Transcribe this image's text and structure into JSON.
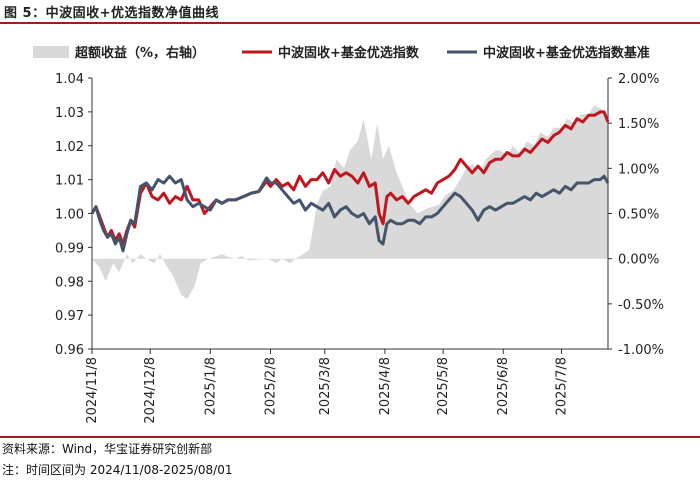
{
  "figure": {
    "title": "图 5：中波固收+优选指数净值曲线",
    "source": "资料来源：Wind，华宝证券研究创新部",
    "note": "注：时间区间为 2024/11/08-2025/08/01"
  },
  "chart_data": {
    "type": "line",
    "title": "",
    "xlabel": "",
    "ylabel": "",
    "x_ticks": [
      "2024/11/8",
      "2024/12/8",
      "2025/1/8",
      "2025/2/8",
      "2025/3/8",
      "2025/4/8",
      "2025/5/8",
      "2025/6/8",
      "2025/7/8"
    ],
    "x_range": [
      "2024-11-08",
      "2025-08-01"
    ],
    "y_left": {
      "min": 0.96,
      "max": 1.04,
      "ticks": [
        "0.96",
        "0.97",
        "0.98",
        "0.99",
        "1.00",
        "1.01",
        "1.02",
        "1.03",
        "1.04"
      ]
    },
    "y_right": {
      "min": -1.0,
      "max": 2.0,
      "ticks": [
        "-1.00%",
        "-0.50%",
        "0.00%",
        "0.50%",
        "1.00%",
        "1.50%",
        "2.00%"
      ]
    },
    "grid": false,
    "legend_position": "top",
    "series": [
      {
        "name": "超额收益（%，右轴）",
        "kind": "area",
        "axis": "right",
        "color": "#d9d9d9",
        "x": [
          "2024-11-08",
          "2024-11-12",
          "2024-11-15",
          "2024-11-19",
          "2024-11-22",
          "2024-11-26",
          "2024-11-29",
          "2024-12-03",
          "2024-12-06",
          "2024-12-10",
          "2024-12-13",
          "2024-12-17",
          "2024-12-20",
          "2024-12-24",
          "2024-12-27",
          "2024-12-31",
          "2025-01-03",
          "2025-01-07",
          "2025-01-10",
          "2025-01-14",
          "2025-01-17",
          "2025-01-21",
          "2025-01-24",
          "2025-01-28",
          "2025-02-07",
          "2025-02-11",
          "2025-02-14",
          "2025-02-18",
          "2025-02-21",
          "2025-02-25",
          "2025-02-28",
          "2025-03-04",
          "2025-03-07",
          "2025-03-11",
          "2025-03-14",
          "2025-03-18",
          "2025-03-21",
          "2025-03-25",
          "2025-03-28",
          "2025-04-01",
          "2025-04-04",
          "2025-04-07",
          "2025-04-10",
          "2025-04-14",
          "2025-04-17",
          "2025-04-21",
          "2025-04-25",
          "2025-04-29",
          "2025-05-06",
          "2025-05-09",
          "2025-05-13",
          "2025-05-16",
          "2025-05-20",
          "2025-05-23",
          "2025-05-27",
          "2025-05-30",
          "2025-06-04",
          "2025-06-06",
          "2025-06-10",
          "2025-06-13",
          "2025-06-17",
          "2025-06-20",
          "2025-06-24",
          "2025-06-27",
          "2025-07-01",
          "2025-07-04",
          "2025-07-08",
          "2025-07-11",
          "2025-07-15",
          "2025-07-18",
          "2025-07-22",
          "2025-07-25",
          "2025-07-29",
          "2025-08-01"
        ],
        "values": [
          0.0,
          -0.1,
          -0.25,
          -0.05,
          -0.15,
          0.05,
          -0.05,
          0.05,
          0.0,
          -0.05,
          0.05,
          -0.1,
          -0.2,
          -0.4,
          -0.45,
          -0.3,
          -0.05,
          0.0,
          0.02,
          0.05,
          0.02,
          0.0,
          0.03,
          -0.02,
          0.0,
          -0.05,
          0.0,
          -0.05,
          0.0,
          0.05,
          0.1,
          0.6,
          0.75,
          0.8,
          1.1,
          1.0,
          1.2,
          1.3,
          1.55,
          1.1,
          1.5,
          1.1,
          1.25,
          0.95,
          0.8,
          0.6,
          0.5,
          0.55,
          0.6,
          0.7,
          0.75,
          0.85,
          1.0,
          1.05,
          0.95,
          1.1,
          1.2,
          1.2,
          1.15,
          1.25,
          1.15,
          1.3,
          1.25,
          1.4,
          1.35,
          1.45,
          1.45,
          1.55,
          1.5,
          1.6,
          1.6,
          1.7,
          1.65,
          1.5
        ]
      },
      {
        "name": "中波固收+基金优选指数",
        "kind": "line",
        "axis": "left",
        "color": "#c0161f",
        "x": [
          "2024-11-08",
          "2024-11-10",
          "2024-11-12",
          "2024-11-14",
          "2024-11-16",
          "2024-11-18",
          "2024-11-20",
          "2024-11-22",
          "2024-11-24",
          "2024-11-26",
          "2024-11-28",
          "2024-11-30",
          "2024-12-03",
          "2024-12-06",
          "2024-12-09",
          "2024-12-12",
          "2024-12-15",
          "2024-12-18",
          "2024-12-21",
          "2024-12-24",
          "2024-12-27",
          "2024-12-30",
          "2025-01-02",
          "2025-01-05",
          "2025-01-08",
          "2025-01-11",
          "2025-01-14",
          "2025-01-17",
          "2025-01-21",
          "2025-01-25",
          "2025-01-29",
          "2025-02-02",
          "2025-02-06",
          "2025-02-08",
          "2025-02-11",
          "2025-02-14",
          "2025-02-17",
          "2025-02-20",
          "2025-02-23",
          "2025-02-26",
          "2025-03-01",
          "2025-03-04",
          "2025-03-07",
          "2025-03-10",
          "2025-03-13",
          "2025-03-16",
          "2025-03-19",
          "2025-03-22",
          "2025-03-25",
          "2025-03-28",
          "2025-03-31",
          "2025-04-03",
          "2025-04-05",
          "2025-04-07",
          "2025-04-09",
          "2025-04-11",
          "2025-04-14",
          "2025-04-17",
          "2025-04-20",
          "2025-04-23",
          "2025-04-26",
          "2025-04-29",
          "2025-05-02",
          "2025-05-05",
          "2025-05-08",
          "2025-05-11",
          "2025-05-14",
          "2025-05-17",
          "2025-05-20",
          "2025-05-23",
          "2025-05-26",
          "2025-05-29",
          "2025-06-01",
          "2025-06-04",
          "2025-06-07",
          "2025-06-10",
          "2025-06-13",
          "2025-06-16",
          "2025-06-19",
          "2025-06-22",
          "2025-06-25",
          "2025-06-28",
          "2025-07-01",
          "2025-07-04",
          "2025-07-07",
          "2025-07-10",
          "2025-07-13",
          "2025-07-16",
          "2025-07-19",
          "2025-07-22",
          "2025-07-25",
          "2025-07-28",
          "2025-07-30",
          "2025-08-01"
        ],
        "values": [
          1.0,
          1.002,
          0.999,
          0.996,
          0.993,
          0.995,
          0.992,
          0.994,
          0.991,
          0.995,
          0.998,
          0.996,
          1.006,
          1.009,
          1.005,
          1.004,
          1.006,
          1.003,
          1.005,
          1.004,
          1.008,
          1.004,
          1.004,
          1.0,
          1.002,
          1.004,
          1.003,
          1.004,
          1.004,
          1.005,
          1.006,
          1.0065,
          1.0095,
          1.008,
          1.01,
          1.008,
          1.009,
          1.007,
          1.011,
          1.008,
          1.01,
          1.01,
          1.012,
          1.009,
          1.013,
          1.011,
          1.012,
          1.011,
          1.009,
          1.012,
          1.008,
          1.009,
          1.0,
          0.997,
          1.005,
          1.006,
          1.004,
          1.005,
          1.003,
          1.005,
          1.006,
          1.007,
          1.006,
          1.009,
          1.01,
          1.011,
          1.013,
          1.016,
          1.014,
          1.012,
          1.014,
          1.012,
          1.015,
          1.016,
          1.016,
          1.018,
          1.017,
          1.017,
          1.019,
          1.018,
          1.02,
          1.022,
          1.021,
          1.023,
          1.024,
          1.026,
          1.025,
          1.028,
          1.027,
          1.029,
          1.029,
          1.03,
          1.03,
          1.027
        ]
      },
      {
        "name": "中波固收+基金优选指数基准",
        "kind": "line",
        "axis": "left",
        "color": "#44546a",
        "x": [
          "2024-11-08",
          "2024-11-10",
          "2024-11-12",
          "2024-11-14",
          "2024-11-16",
          "2024-11-18",
          "2024-11-20",
          "2024-11-22",
          "2024-11-24",
          "2024-11-26",
          "2024-11-28",
          "2024-11-30",
          "2024-12-03",
          "2024-12-06",
          "2024-12-09",
          "2024-12-12",
          "2024-12-15",
          "2024-12-18",
          "2024-12-21",
          "2024-12-24",
          "2024-12-27",
          "2024-12-30",
          "2025-01-02",
          "2025-01-05",
          "2025-01-08",
          "2025-01-11",
          "2025-01-14",
          "2025-01-17",
          "2025-01-21",
          "2025-01-25",
          "2025-01-29",
          "2025-02-02",
          "2025-02-06",
          "2025-02-08",
          "2025-02-11",
          "2025-02-14",
          "2025-02-17",
          "2025-02-20",
          "2025-02-23",
          "2025-02-26",
          "2025-03-01",
          "2025-03-04",
          "2025-03-07",
          "2025-03-10",
          "2025-03-13",
          "2025-03-16",
          "2025-03-19",
          "2025-03-22",
          "2025-03-25",
          "2025-03-28",
          "2025-03-31",
          "2025-04-03",
          "2025-04-05",
          "2025-04-07",
          "2025-04-09",
          "2025-04-11",
          "2025-04-14",
          "2025-04-17",
          "2025-04-20",
          "2025-04-23",
          "2025-04-26",
          "2025-04-29",
          "2025-05-02",
          "2025-05-05",
          "2025-05-08",
          "2025-05-11",
          "2025-05-14",
          "2025-05-17",
          "2025-05-20",
          "2025-05-23",
          "2025-05-26",
          "2025-05-29",
          "2025-06-01",
          "2025-06-04",
          "2025-06-07",
          "2025-06-10",
          "2025-06-13",
          "2025-06-16",
          "2025-06-19",
          "2025-06-22",
          "2025-06-25",
          "2025-06-28",
          "2025-07-01",
          "2025-07-04",
          "2025-07-07",
          "2025-07-10",
          "2025-07-13",
          "2025-07-16",
          "2025-07-19",
          "2025-07-22",
          "2025-07-25",
          "2025-07-28",
          "2025-07-30",
          "2025-08-01"
        ],
        "values": [
          1.0,
          1.002,
          0.998,
          0.995,
          0.993,
          0.994,
          0.991,
          0.993,
          0.989,
          0.994,
          0.998,
          0.997,
          1.008,
          1.009,
          1.007,
          1.01,
          1.009,
          1.011,
          1.009,
          1.01,
          1.004,
          1.002,
          1.003,
          1.002,
          1.001,
          1.004,
          1.003,
          1.004,
          1.004,
          1.005,
          1.006,
          1.0065,
          1.0105,
          1.009,
          1.009,
          1.007,
          1.005,
          1.003,
          1.004,
          1.001,
          1.003,
          1.002,
          1.001,
          1.003,
          0.999,
          1.001,
          1.002,
          1.0,
          0.999,
          1.0,
          0.997,
          0.999,
          0.992,
          0.991,
          0.997,
          0.998,
          0.997,
          0.997,
          0.998,
          0.998,
          0.997,
          0.999,
          0.999,
          1.0,
          1.002,
          1.004,
          1.006,
          1.005,
          1.003,
          1.001,
          0.998,
          1.001,
          1.002,
          1.001,
          1.002,
          1.003,
          1.003,
          1.004,
          1.005,
          1.004,
          1.006,
          1.005,
          1.006,
          1.007,
          1.006,
          1.008,
          1.007,
          1.009,
          1.009,
          1.009,
          1.01,
          1.01,
          1.011,
          1.009
        ]
      }
    ]
  }
}
